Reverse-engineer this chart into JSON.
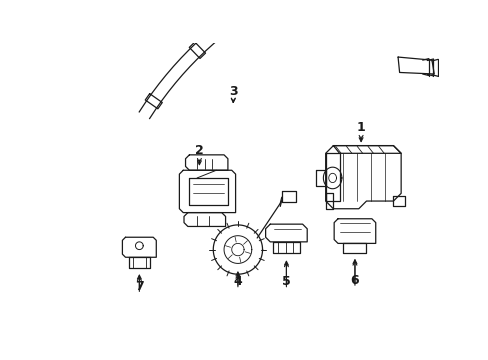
{
  "bg": "#ffffff",
  "lc": "#1a1a1a",
  "lw": 0.9,
  "fig_w": 4.89,
  "fig_h": 3.6,
  "dpi": 100
}
